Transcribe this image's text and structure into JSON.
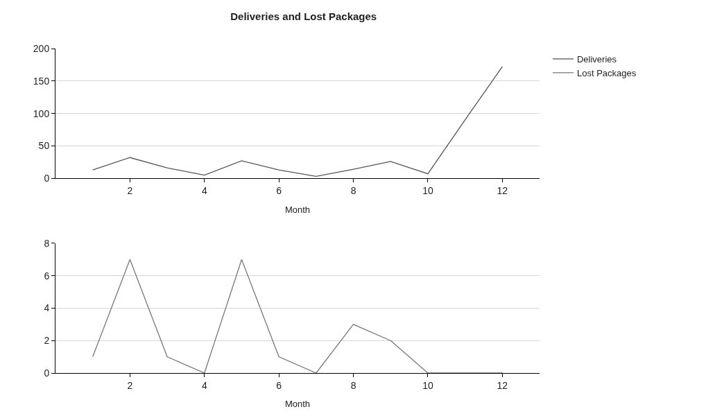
{
  "chart_data": [
    {
      "type": "line",
      "title": "Deliveries and Lost Packages",
      "xlabel": "Month",
      "x": [
        1,
        2,
        3,
        4,
        5,
        6,
        7,
        8,
        9,
        10,
        11,
        12
      ],
      "xlim": [
        0,
        13
      ],
      "xticks": [
        2,
        4,
        6,
        8,
        10,
        12
      ],
      "ylim": [
        0,
        200
      ],
      "yticks": [
        0,
        50,
        100,
        150,
        200
      ],
      "grid": "y",
      "legend": "top right",
      "series": [
        {
          "name": "Deliveries",
          "color": "#555555",
          "values": [
            13,
            32,
            16,
            5,
            27,
            13,
            3,
            14,
            26,
            7,
            90,
            172
          ]
        }
      ]
    },
    {
      "type": "line",
      "xlabel": "Month",
      "x": [
        1,
        2,
        3,
        4,
        5,
        6,
        7,
        8,
        9,
        10,
        11,
        12
      ],
      "xlim": [
        0,
        13
      ],
      "xticks": [
        2,
        4,
        6,
        8,
        10,
        12
      ],
      "ylim": [
        0,
        8
      ],
      "yticks": [
        0,
        2,
        4,
        6,
        8
      ],
      "grid": "y",
      "legend": "top right",
      "series": [
        {
          "name": "Lost Packages",
          "color": "#777777",
          "values": [
            1,
            7,
            1,
            0,
            7,
            1,
            0,
            3,
            2,
            0,
            0,
            0
          ]
        }
      ]
    }
  ]
}
